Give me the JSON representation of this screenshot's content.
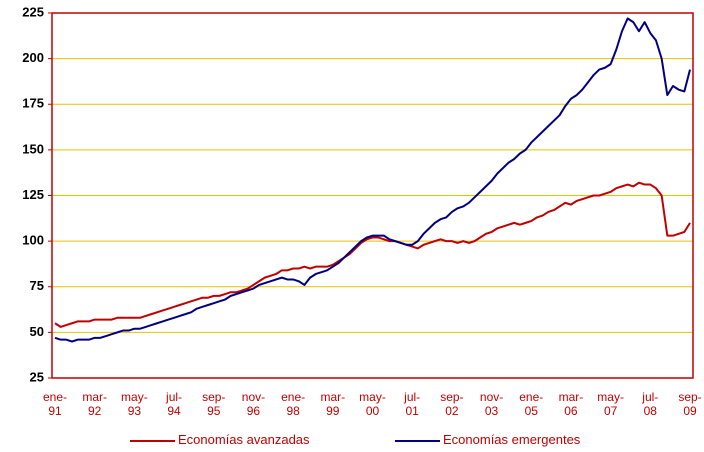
{
  "chart_data": {
    "type": "line",
    "categories": [
      "ene-91",
      null,
      null,
      null,
      null,
      null,
      null,
      "mar-92",
      null,
      null,
      null,
      null,
      null,
      null,
      "may-93",
      null,
      null,
      null,
      null,
      null,
      null,
      "jul-94",
      null,
      null,
      null,
      null,
      null,
      null,
      "sep-95",
      null,
      null,
      null,
      null,
      null,
      null,
      "nov-96",
      null,
      null,
      null,
      null,
      null,
      null,
      "ene-98",
      null,
      null,
      null,
      null,
      null,
      null,
      "mar-99",
      null,
      null,
      null,
      null,
      null,
      null,
      "may-00",
      null,
      null,
      null,
      null,
      null,
      null,
      "jul-01",
      null,
      null,
      null,
      null,
      null,
      null,
      "sep-02",
      null,
      null,
      null,
      null,
      null,
      null,
      "nov-03",
      null,
      null,
      null,
      null,
      null,
      null,
      "ene-05",
      null,
      null,
      null,
      null,
      null,
      null,
      "mar-06",
      null,
      null,
      null,
      null,
      null,
      null,
      "may-07",
      null,
      null,
      null,
      null,
      null,
      null,
      "jul-08",
      null,
      null,
      null,
      null,
      null,
      null,
      "sep-09"
    ],
    "series": [
      {
        "name": "Economías avanzadas",
        "color": "#c00000",
        "values": [
          55,
          53,
          54,
          55,
          56,
          56,
          56,
          57,
          57,
          57,
          57,
          58,
          58,
          58,
          58,
          58,
          59,
          60,
          61,
          62,
          63,
          64,
          65,
          66,
          67,
          68,
          69,
          69,
          70,
          70,
          71,
          72,
          72,
          73,
          74,
          76,
          78,
          80,
          81,
          82,
          84,
          84,
          85,
          85,
          86,
          85,
          86,
          86,
          86,
          87,
          89,
          91,
          93,
          96,
          99,
          101,
          102,
          102,
          101,
          100,
          100,
          99,
          98,
          97,
          96,
          98,
          99,
          100,
          101,
          100,
          100,
          99,
          100,
          99,
          100,
          102,
          104,
          105,
          107,
          108,
          109,
          110,
          109,
          110,
          111,
          113,
          114,
          116,
          117,
          119,
          121,
          120,
          122,
          123,
          124,
          125,
          125,
          126,
          127,
          129,
          130,
          131,
          130,
          132,
          131,
          131,
          129,
          125,
          103,
          103,
          104,
          105,
          110
        ]
      },
      {
        "name": "Economías emergentes",
        "color": "#000080",
        "values": [
          47,
          46,
          46,
          45,
          46,
          46,
          46,
          47,
          47,
          48,
          49,
          50,
          51,
          51,
          52,
          52,
          53,
          54,
          55,
          56,
          57,
          58,
          59,
          60,
          61,
          63,
          64,
          65,
          66,
          67,
          68,
          70,
          71,
          72,
          73,
          74,
          76,
          77,
          78,
          79,
          80,
          79,
          79,
          78,
          76,
          80,
          82,
          83,
          84,
          86,
          88,
          91,
          94,
          97,
          100,
          102,
          103,
          103,
          103,
          101,
          100,
          99,
          98,
          98,
          100,
          104,
          107,
          110,
          112,
          113,
          116,
          118,
          119,
          121,
          124,
          127,
          130,
          133,
          137,
          140,
          143,
          145,
          148,
          150,
          154,
          157,
          160,
          163,
          166,
          169,
          174,
          178,
          180,
          183,
          187,
          191,
          194,
          195,
          197,
          205,
          215,
          222,
          220,
          215,
          220,
          214,
          210,
          200,
          180,
          185,
          183,
          182,
          194
        ]
      }
    ],
    "ylim": [
      25,
      225
    ],
    "yticks": [
      25,
      50,
      75,
      100,
      125,
      150,
      175,
      200,
      225
    ],
    "grid": true,
    "grid_color": "#e6c200",
    "axis_color": "#c00000",
    "legend": "bottom"
  }
}
